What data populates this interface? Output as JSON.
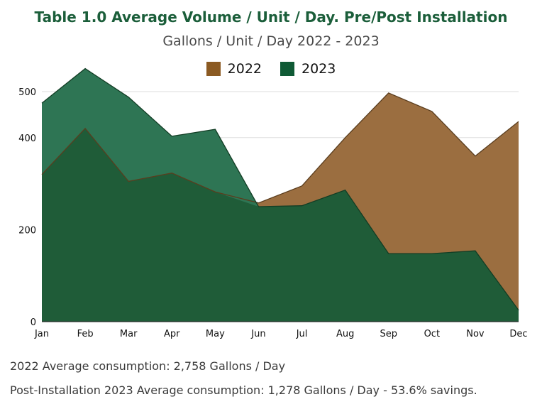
{
  "chart_data": {
    "type": "area",
    "title": "Table 1.0 Average Volume / Unit / Day. Pre/Post Installation",
    "subtitle": "Gallons / Unit / Day 2022 - 2023",
    "categories": [
      "Jan",
      "Feb",
      "Mar",
      "Apr",
      "May",
      "Jun",
      "Jul",
      "Aug",
      "Sep",
      "Oct",
      "Nov",
      "Dec"
    ],
    "series": [
      {
        "name": "2022",
        "color": "#9b6e40",
        "values": [
          320,
          420,
          305,
          323,
          282,
          258,
          295,
          400,
          497,
          457,
          360,
          435
        ]
      },
      {
        "name": "2023",
        "color": "#2e7554",
        "values": [
          475,
          550,
          488,
          403,
          418,
          250,
          252,
          286,
          148,
          148,
          154,
          25
        ]
      }
    ],
    "ylim": [
      0,
      500
    ],
    "yticks": [
      0,
      200,
      400,
      500
    ],
    "grid": true,
    "legend_position": "top-center",
    "overlap_color": "#1f5c38"
  },
  "notes": {
    "line1": "2022 Average consumption: 2,758 Gallons / Day",
    "line2": "Post-Installation 2023 Average consumption: 1,278 Gallons / Day - 53.6% savings."
  }
}
